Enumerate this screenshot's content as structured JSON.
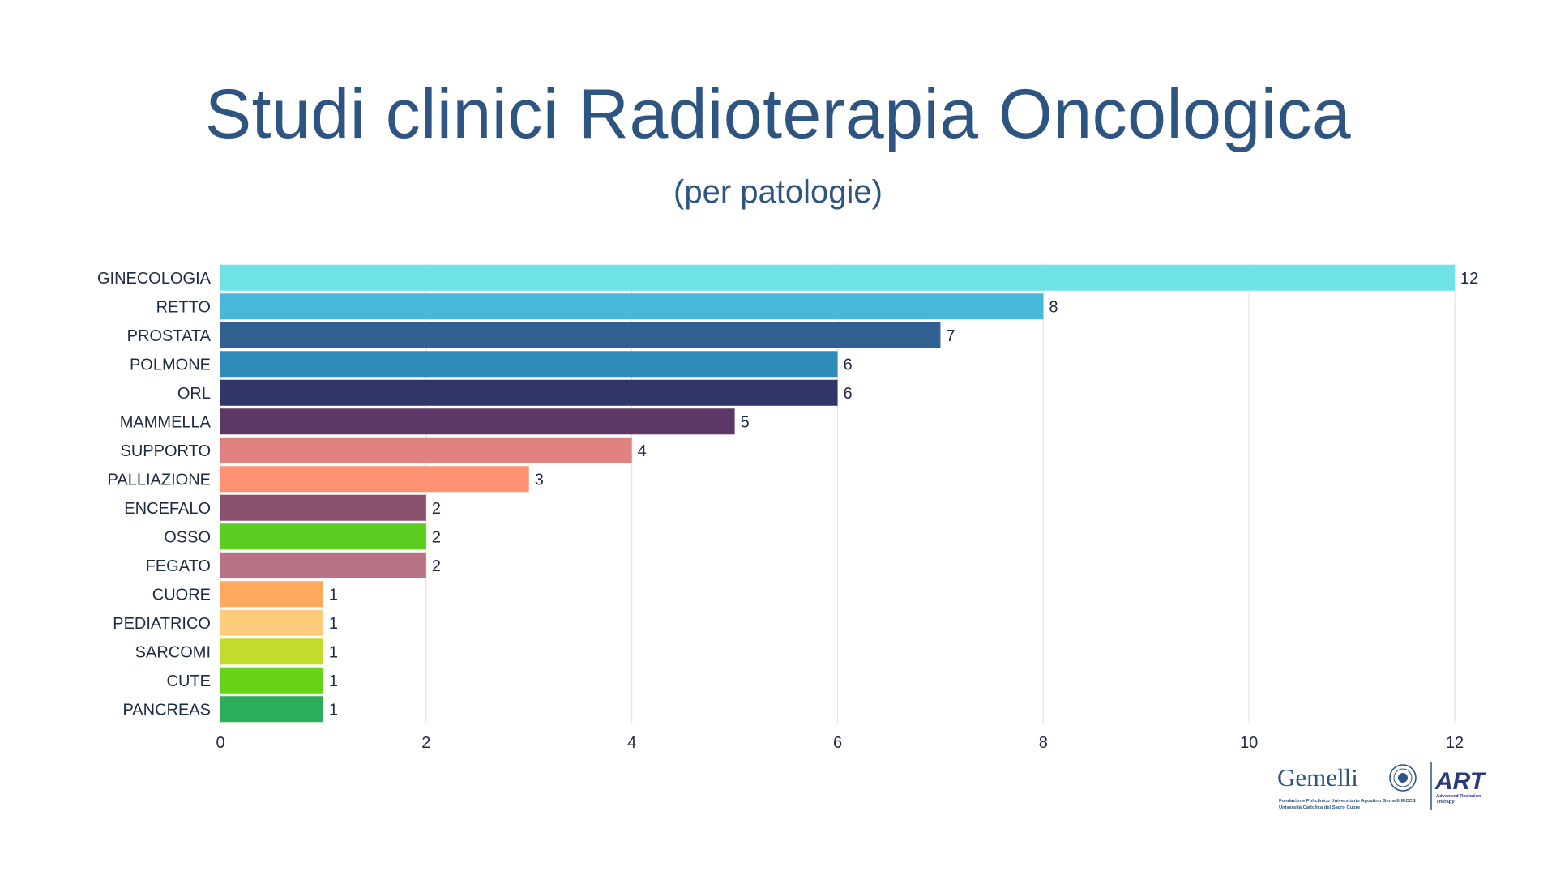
{
  "header": {
    "title": "Studi clinici Radioterapia Oncologica",
    "subtitle": "(per patologie)"
  },
  "chart_data": {
    "type": "bar",
    "orientation": "horizontal",
    "title": "Studi clinici Radioterapia Oncologica",
    "subtitle": "(per patologie)",
    "xlabel": "",
    "ylabel": "",
    "xlim": [
      0,
      12
    ],
    "xticks": [
      0,
      2,
      4,
      6,
      8,
      10,
      12
    ],
    "grid": true,
    "legend": "none",
    "categories": [
      "GINECOLOGIA",
      "RETTO",
      "PROSTATA",
      "POLMONE",
      "ORL",
      "MAMMELLA",
      "SUPPORTO",
      "PALLIAZIONE",
      "ENCEFALO",
      "OSSO",
      "FEGATO",
      "CUORE",
      "PEDIATRICO",
      "SARCOMI",
      "CUTE",
      "PANCREAS"
    ],
    "values": [
      12,
      8,
      7,
      6,
      6,
      5,
      4,
      3,
      2,
      2,
      2,
      1,
      1,
      1,
      1,
      1
    ],
    "colors": [
      "#6de3e8",
      "#47b9d8",
      "#30608f",
      "#2f8cba",
      "#323568",
      "#5d3866",
      "#e08282",
      "#fe9273",
      "#8a516e",
      "#5bcc20",
      "#b87284",
      "#fea95c",
      "#fccb7b",
      "#c3dc2b",
      "#67d41a",
      "#2aae59"
    ]
  },
  "logos": {
    "gemelli_name": "Gemelli",
    "gemelli_line1": "Fondazione Policlinico Universitario Agostino Gemelli IRCCS",
    "gemelli_line2": "Università Cattolica del Sacro Cuore",
    "art_name": "ART",
    "art_line1": "Advanced Radiation",
    "art_line2": "Therapy"
  },
  "colors": {
    "text": "#2e5581",
    "axis_text": "#1f2a44",
    "grid": "#e3e3e3"
  }
}
